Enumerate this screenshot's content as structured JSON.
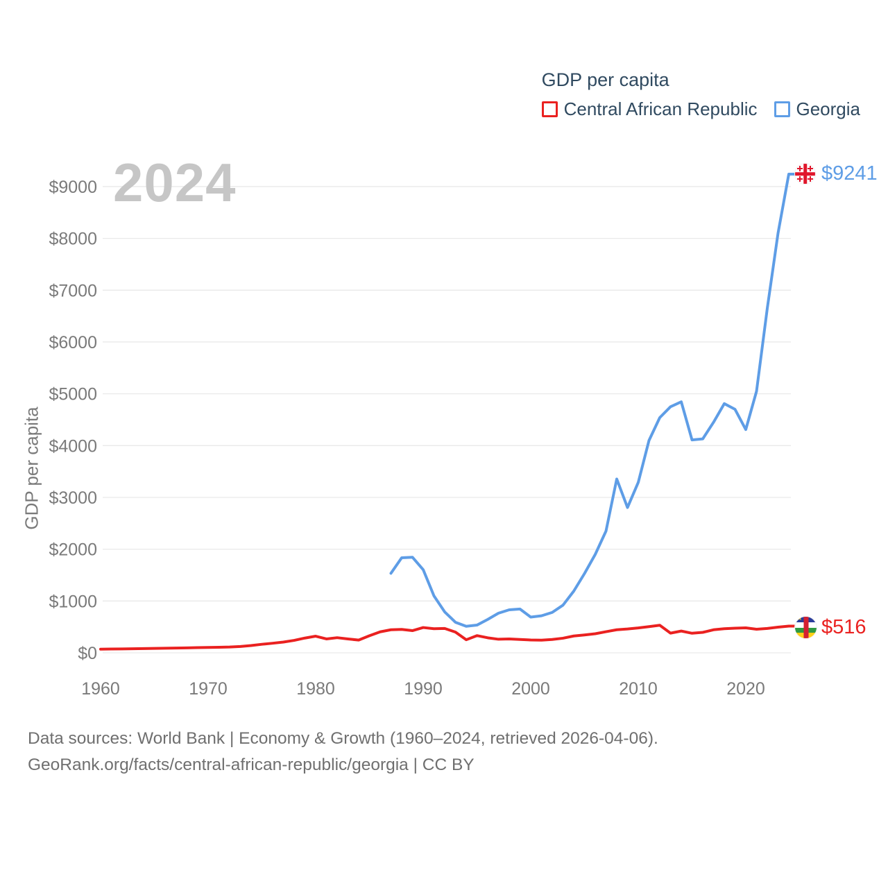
{
  "legend": {
    "title": "GDP per capita",
    "items": [
      {
        "label": "Central African Republic",
        "color": "#ea2120"
      },
      {
        "label": "Georgia",
        "color": "#5e9de6"
      }
    ]
  },
  "watermark": "2024",
  "footer": {
    "line1": "Data sources: World Bank | Economy & Growth (1960–2024, retrieved 2026-04-06).",
    "line2": "GeoRank.org/facts/central-african-republic/georgia | CC BY"
  },
  "icons": {
    "georgia_flag": "georgia-flag",
    "car_flag": "central-african-republic-flag"
  },
  "chart_data": {
    "type": "line",
    "title": "GDP per capita",
    "xlabel": "",
    "ylabel": "GDP per capita",
    "watermark": "2024",
    "grid": true,
    "legend_position": "top-right",
    "xlim": [
      1960,
      2024
    ],
    "ylim": [
      0,
      9500
    ],
    "x_ticks": [
      1960,
      1970,
      1980,
      1990,
      2000,
      2010,
      2020
    ],
    "y_tick_values": [
      0,
      1000,
      2000,
      3000,
      4000,
      5000,
      6000,
      7000,
      8000,
      9000
    ],
    "y_ticks": [
      "$0",
      "$1000",
      "$2000",
      "$3000",
      "$4000",
      "$5000",
      "$6000",
      "$7000",
      "$8000",
      "$9000"
    ],
    "series": [
      {
        "id": "car",
        "name": "Central African Republic",
        "color": "#ea2120",
        "end_label": "$516",
        "end_value": 516,
        "x": [
          1960,
          1961,
          1962,
          1963,
          1964,
          1965,
          1966,
          1967,
          1968,
          1969,
          1970,
          1971,
          1972,
          1973,
          1974,
          1975,
          1976,
          1977,
          1978,
          1979,
          1980,
          1981,
          1982,
          1983,
          1984,
          1985,
          1986,
          1987,
          1988,
          1989,
          1990,
          1991,
          1992,
          1993,
          1994,
          1995,
          1996,
          1997,
          1998,
          1999,
          2000,
          2001,
          2002,
          2003,
          2004,
          2005,
          2006,
          2007,
          2008,
          2009,
          2010,
          2011,
          2012,
          2013,
          2014,
          2015,
          2016,
          2017,
          2018,
          2019,
          2020,
          2021,
          2022,
          2023,
          2024
        ],
        "values": [
          70,
          73,
          76,
          79,
          82,
          85,
          88,
          92,
          96,
          100,
          103,
          107,
          112,
          122,
          140,
          165,
          185,
          208,
          240,
          285,
          321,
          268,
          292,
          268,
          246,
          330,
          405,
          445,
          452,
          428,
          488,
          465,
          470,
          400,
          252,
          332,
          290,
          262,
          268,
          258,
          248,
          245,
          258,
          282,
          325,
          345,
          368,
          408,
          445,
          460,
          480,
          505,
          532,
          380,
          420,
          378,
          395,
          445,
          465,
          475,
          482,
          455,
          470,
          495,
          516
        ]
      },
      {
        "id": "georgia",
        "name": "Georgia",
        "color": "#5e9de6",
        "end_label": "$9241",
        "end_value": 9241,
        "x": [
          1987,
          1988,
          1989,
          1990,
          1991,
          1992,
          1993,
          1994,
          1995,
          1996,
          1997,
          1998,
          1999,
          2000,
          2001,
          2002,
          2003,
          2004,
          2005,
          2006,
          2007,
          2008,
          2009,
          2010,
          2011,
          2012,
          2013,
          2014,
          2015,
          2016,
          2017,
          2018,
          2019,
          2020,
          2021,
          2022,
          2023,
          2024
        ],
        "values": [
          1535,
          1835,
          1845,
          1605,
          1100,
          790,
          590,
          512,
          535,
          645,
          765,
          830,
          845,
          690,
          715,
          780,
          920,
          1190,
          1530,
          1900,
          2350,
          3355,
          2805,
          3290,
          4100,
          4540,
          4750,
          4845,
          4110,
          4130,
          4450,
          4810,
          4700,
          4310,
          5050,
          6650,
          8100,
          9241
        ]
      }
    ]
  }
}
